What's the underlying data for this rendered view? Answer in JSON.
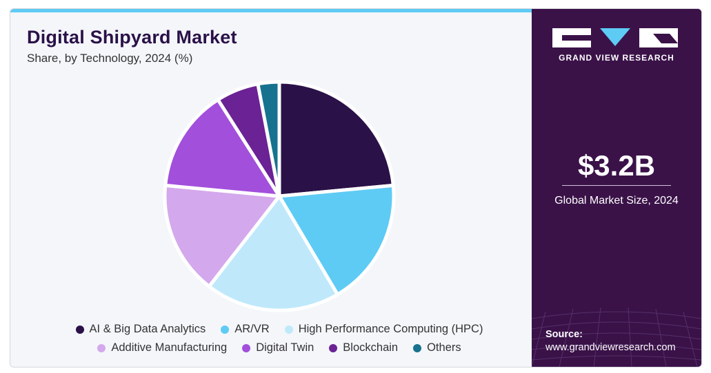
{
  "header": {
    "title": "Digital Shipyard Market",
    "subtitle": "Share, by Technology, 2024 (%)"
  },
  "chart_data": {
    "type": "pie",
    "title": "Digital Shipyard Market",
    "subtitle": "Share, by Technology, 2024 (%)",
    "legend_placement": "bottom",
    "categories": [
      "AI & Big Data Analytics",
      "AR/VR",
      "High Performance Computing (HPC)",
      "Additive Manufacturing",
      "Digital Twin",
      "Blockchain",
      "Others"
    ],
    "values": [
      23.5,
      18,
      19,
      16,
      14.5,
      6,
      3
    ],
    "colors": [
      "#2a1148",
      "#5ecbf5",
      "#bfe9fb",
      "#d4a8ec",
      "#a24fdc",
      "#6a2294",
      "#17728f"
    ]
  },
  "sidebar": {
    "brand": "GRAND VIEW RESEARCH",
    "market_size": "$3.2B",
    "market_size_label": "Global Market Size, 2024",
    "source_label": "Source:",
    "source_url": "www.grandviewresearch.com"
  }
}
